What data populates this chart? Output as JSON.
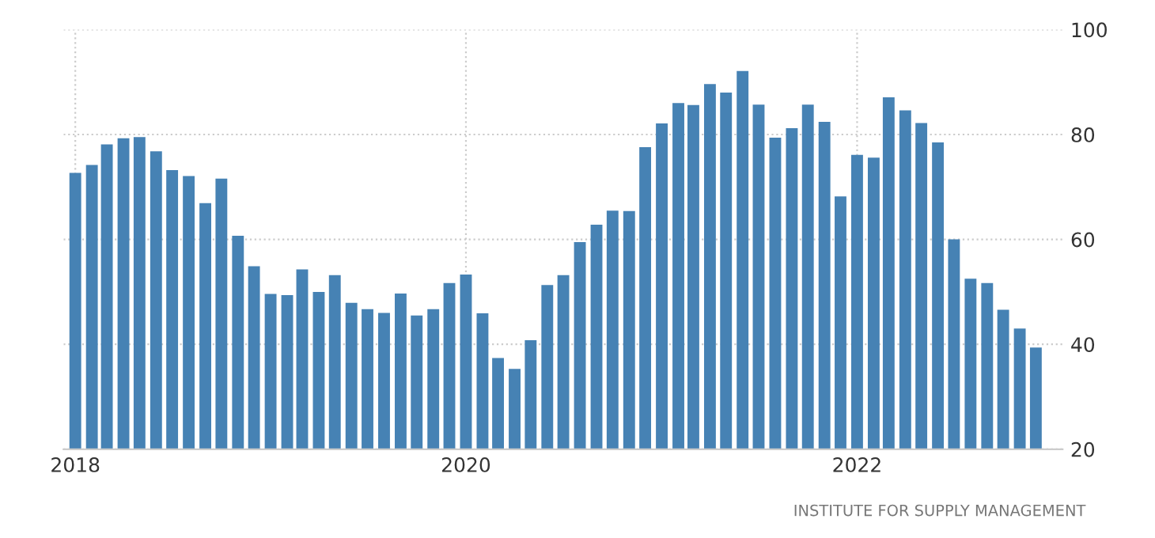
{
  "chart_data": {
    "type": "bar",
    "color": "#4682b4",
    "x": [
      "2018-01",
      "2018-02",
      "2018-03",
      "2018-04",
      "2018-05",
      "2018-06",
      "2018-07",
      "2018-08",
      "2018-09",
      "2018-10",
      "2018-11",
      "2018-12",
      "2019-01",
      "2019-02",
      "2019-03",
      "2019-04",
      "2019-05",
      "2019-06",
      "2019-07",
      "2019-08",
      "2019-09",
      "2019-10",
      "2019-11",
      "2019-12",
      "2020-01",
      "2020-02",
      "2020-03",
      "2020-04",
      "2020-05",
      "2020-06",
      "2020-07",
      "2020-08",
      "2020-09",
      "2020-10",
      "2020-11",
      "2020-12",
      "2021-01",
      "2021-02",
      "2021-03",
      "2021-04",
      "2021-05",
      "2021-06",
      "2021-07",
      "2021-08",
      "2021-09",
      "2021-10",
      "2021-11",
      "2021-12",
      "2022-01",
      "2022-02",
      "2022-03",
      "2022-04",
      "2022-05",
      "2022-06",
      "2022-07",
      "2022-08",
      "2022-09",
      "2022-10",
      "2022-11",
      "2022-12"
    ],
    "values": [
      72.7,
      74.2,
      78.1,
      79.3,
      79.5,
      76.8,
      73.2,
      72.1,
      66.9,
      71.6,
      60.7,
      54.9,
      49.6,
      49.4,
      54.3,
      50.0,
      53.2,
      47.9,
      46.7,
      46.0,
      49.7,
      45.5,
      46.7,
      51.7,
      53.3,
      45.9,
      37.4,
      35.3,
      40.8,
      51.3,
      53.2,
      59.5,
      62.8,
      65.5,
      65.4,
      77.6,
      82.1,
      86.0,
      85.6,
      89.6,
      88.0,
      92.1,
      85.7,
      79.4,
      81.2,
      85.7,
      82.4,
      68.2,
      76.1,
      75.6,
      87.1,
      84.6,
      82.2,
      78.5,
      60.0,
      52.5,
      51.7,
      46.6,
      43.0,
      39.4
    ],
    "xlim": [
      "2017-12-10",
      "2023-01-20"
    ],
    "xticks": [
      {
        "value": "2018-01",
        "label": "2018"
      },
      {
        "value": "2020-01",
        "label": "2020"
      },
      {
        "value": "2022-01",
        "label": "2022"
      }
    ],
    "ylim": [
      20,
      100
    ],
    "yticks": [
      20,
      40,
      60,
      80,
      100
    ],
    "grid": true,
    "annotations": [
      "INSTITUTE FOR SUPPLY MANAGEMENT"
    ]
  }
}
